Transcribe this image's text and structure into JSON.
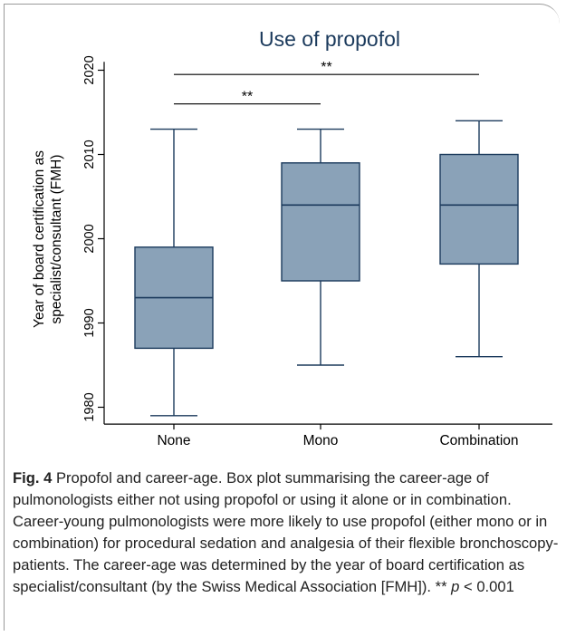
{
  "chart_data": {
    "type": "box",
    "title": "Use of propofol",
    "ylabel_line1": "Year of board certification as",
    "ylabel_line2": "specialist/consultant (FMH)",
    "xlabel": "",
    "ylim": [
      1978,
      2021
    ],
    "yticks": [
      1980,
      1990,
      2000,
      2010,
      2020
    ],
    "categories": [
      "None",
      "Mono",
      "Combination"
    ],
    "boxes": [
      {
        "category": "None",
        "min": 1979,
        "q1": 1987,
        "median": 1993,
        "q3": 1999,
        "max": 2013
      },
      {
        "category": "Mono",
        "min": 1985,
        "q1": 1995,
        "median": 2004,
        "q3": 2009,
        "max": 2013
      },
      {
        "category": "Combination",
        "min": 1986,
        "q1": 1997,
        "median": 2004,
        "q3": 2010,
        "max": 2014
      }
    ],
    "significance": [
      {
        "from": "None",
        "to": "Combination",
        "y": 2019.5,
        "label": "**"
      },
      {
        "from": "None",
        "to": "Mono",
        "y": 2016,
        "label": "**"
      }
    ],
    "colors": {
      "box_fill": "#8aa2b8",
      "box_stroke": "#1b3a5c",
      "title": "#1b3a5c"
    }
  },
  "caption": {
    "label": "Fig. 4",
    "text": " Propofol and career-age. Box plot summarising the career-age of pulmonologists either not using propofol or using it alone or in combination. Career-young pulmonologists were more likely to use propofol (either mono or in combination) for procedural sedation and analgesia of their flexible bronchoscopy-patients. The career-age was determined by the year of board certification as specialist/consultant (by the Swiss Medical Association [FMH]). ** ",
    "p_symbol": "p",
    "p_text": " < 0.001"
  }
}
